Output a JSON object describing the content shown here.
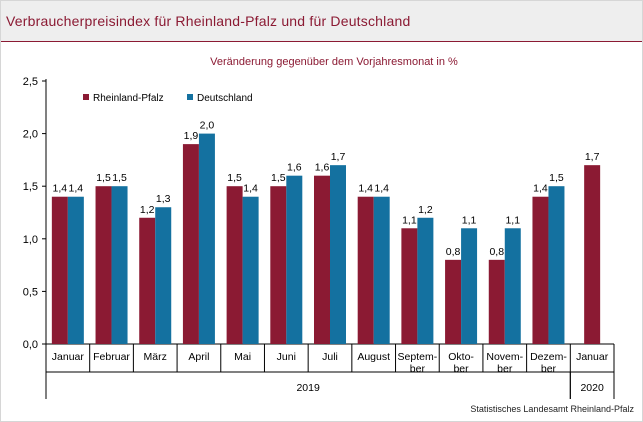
{
  "header": {
    "title": "Verbraucherpreisindex für Rheinland-Pfalz und für Deutschland"
  },
  "footer": {
    "source": "Statistisches Landesamt Rheinland-Pfalz"
  },
  "colors": {
    "rheinland_pfalz": "#8b1a33",
    "deutschland": "#1471a0",
    "title": "#8b1a33",
    "subtitle": "#8b1a33"
  },
  "chart_data": {
    "type": "bar",
    "subtitle": "Veränderung gegenüber dem Vorjahresmonat in %",
    "categories": [
      [
        "Januar"
      ],
      [
        "Februar"
      ],
      [
        "März"
      ],
      [
        "April"
      ],
      [
        "Mai"
      ],
      [
        "Juni"
      ],
      [
        "Juli"
      ],
      [
        "August"
      ],
      [
        "Septem-",
        "ber"
      ],
      [
        "Okto-",
        "ber"
      ],
      [
        "Novem-",
        "ber"
      ],
      [
        "Dezem-",
        "ber"
      ],
      [
        "Januar"
      ]
    ],
    "year_groups": [
      {
        "label": "2019",
        "count": 12
      },
      {
        "label": "2020",
        "count": 1
      }
    ],
    "series": [
      {
        "name": "Rheinland-Pfalz",
        "values": [
          1.4,
          1.5,
          1.2,
          1.9,
          1.5,
          1.5,
          1.6,
          1.4,
          1.1,
          0.8,
          0.8,
          1.4,
          1.7
        ],
        "labels": [
          "1,4",
          "1,5",
          "1,2",
          "1,9",
          "1,5",
          "1,5",
          "1,6",
          "1,4",
          "1,1",
          "0,8",
          "0,8",
          "1,4",
          "1,7"
        ]
      },
      {
        "name": "Deutschland",
        "values": [
          1.4,
          1.5,
          1.3,
          2.0,
          1.4,
          1.6,
          1.7,
          1.4,
          1.2,
          1.1,
          1.1,
          1.5,
          null
        ],
        "labels": [
          "1,4",
          "1,5",
          "1,3",
          "2,0",
          "1,4",
          "1,6",
          "1,7",
          "1,4",
          "1,2",
          "1,1",
          "1,1",
          "1,5",
          ""
        ]
      }
    ],
    "ylim": [
      0,
      2.5
    ],
    "yticks": [
      0,
      0.5,
      1.0,
      1.5,
      2.0,
      2.5
    ],
    "ytick_labels": [
      "0,0",
      "0,5",
      "1,0",
      "1,5",
      "2,0",
      "2,5"
    ],
    "grid": false,
    "legend_position": "top-left"
  }
}
